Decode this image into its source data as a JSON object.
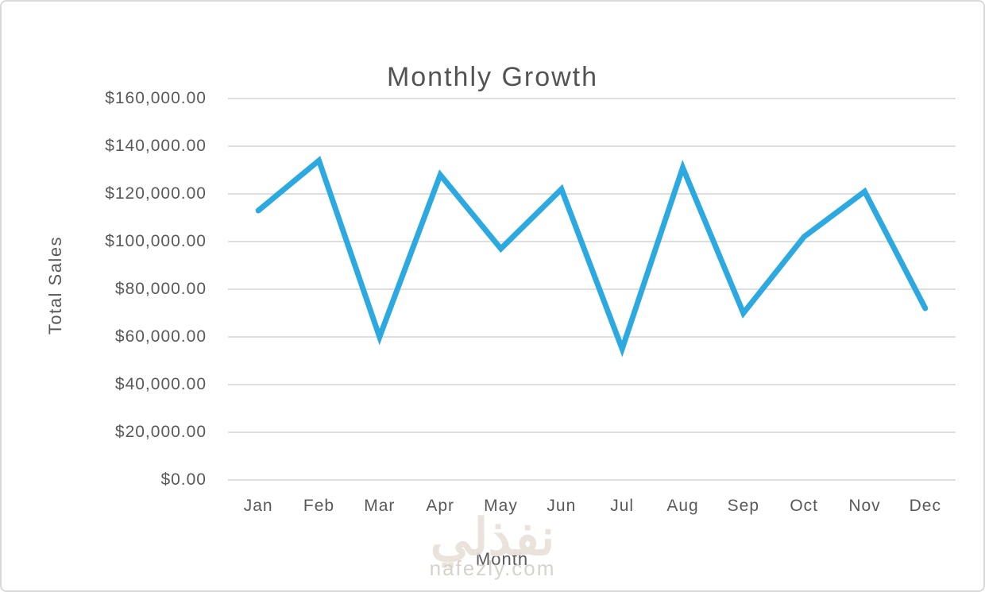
{
  "chart_data": {
    "type": "line",
    "title": "Monthly Growth",
    "xlabel": "Month",
    "ylabel": "Total Sales",
    "categories": [
      "Jan",
      "Feb",
      "Mar",
      "Apr",
      "May",
      "Jun",
      "Jul",
      "Aug",
      "Sep",
      "Oct",
      "Nov",
      "Dec"
    ],
    "values": [
      113000,
      134000,
      60000,
      128000,
      97000,
      122000,
      55000,
      131000,
      70000,
      102000,
      121000,
      72000
    ],
    "ylim": [
      0,
      160000
    ],
    "ytick_step": 20000,
    "ytick_labels": [
      "$0.00",
      "$20,000.00",
      "$40,000.00",
      "$60,000.00",
      "$80,000.00",
      "$100,000.00",
      "$120,000.00",
      "$140,000.00",
      "$160,000.00"
    ],
    "grid": true,
    "legend": false,
    "line_color": "#2BA9E0",
    "grid_color": "#D9D9D9",
    "text_color": "#595959"
  },
  "watermark": {
    "logo_text": "نفذلي",
    "domain": "nafezly.com"
  }
}
